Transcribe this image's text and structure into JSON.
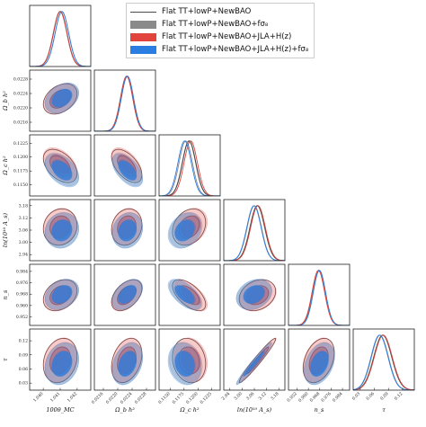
{
  "chart_data": {
    "type": "scatter",
    "title": "",
    "legend": {
      "placement": "top-center",
      "entries": [
        {
          "label": "Flat TT+lowP+NewBAO",
          "style": "line",
          "color": "#4b4b4b"
        },
        {
          "label": "Flat TT+lowP+NewBAO+fσ₈",
          "style": "filled",
          "color": "#8a8a8a"
        },
        {
          "label": "Flat TT+lowP+NewBAO+JLA+H(z)",
          "style": "filled",
          "color": "#e0443c"
        },
        {
          "label": "Flat TT+lowP+NewBAO+JLA+H(z)+fσ₈",
          "style": "filled",
          "color": "#2a7de1"
        }
      ]
    },
    "parameters": [
      {
        "label": "100θ_MC",
        "range": [
          1.0392,
          1.0428
        ],
        "ticks": [
          "1.040",
          "1.041",
          "1.042"
        ],
        "tick_values": [
          1.04,
          1.041,
          1.042
        ]
      },
      {
        "label": "Ω_b h²",
        "range": [
          0.02135,
          0.02305
        ],
        "ticks": [
          "0.0216",
          "0.0220",
          "0.0224",
          "0.0228"
        ],
        "tick_values": [
          0.0216,
          0.022,
          0.0224,
          0.0228
        ]
      },
      {
        "label": "Ω_c h²",
        "range": [
          0.113,
          0.124
        ],
        "ticks": [
          "0.1150",
          "0.1175",
          "0.1200",
          "0.1225"
        ],
        "tick_values": [
          0.115,
          0.1175,
          0.12,
          0.1225
        ]
      },
      {
        "label": "ln(10¹⁰ A_s)",
        "range": [
          2.91,
          3.21
        ],
        "ticks": [
          "2.94",
          "3.00",
          "3.06",
          "3.12",
          "3.18"
        ],
        "tick_values": [
          2.94,
          3.0,
          3.06,
          3.12,
          3.18
        ]
      },
      {
        "label": "n_s",
        "range": [
          0.946,
          0.989
        ],
        "ticks": [
          "0.952",
          "0.960",
          "0.968",
          "0.976",
          "0.984"
        ],
        "tick_values": [
          0.952,
          0.96,
          0.968,
          0.976,
          0.984
        ]
      },
      {
        "label": "τ",
        "range": [
          0.015,
          0.145
        ],
        "ticks": [
          "0.03",
          "0.06",
          "0.09",
          "0.12"
        ],
        "tick_values": [
          0.03,
          0.06,
          0.09,
          0.12
        ]
      }
    ],
    "series": [
      {
        "name": "Flat TT+lowP+NewBAO",
        "color": "#4b4b4b",
        "mean": [
          1.041,
          0.02225,
          0.1184,
          3.075,
          0.9673,
          0.078
        ],
        "sigma": [
          0.0004,
          0.00017,
          0.0012,
          0.036,
          0.0044,
          0.019
        ]
      },
      {
        "name": "Flat TT+lowP+NewBAO+fσ₈",
        "color": "#8a8a8a",
        "mean": [
          1.0411,
          0.02227,
          0.1178,
          3.06,
          0.9675,
          0.072
        ],
        "sigma": [
          0.0004,
          0.00017,
          0.0012,
          0.035,
          0.0043,
          0.018
        ]
      },
      {
        "name": "Flat TT+lowP+NewBAO+JLA+H(z)",
        "color": "#e0443c",
        "mean": [
          1.041,
          0.02225,
          0.1187,
          3.078,
          0.967,
          0.079
        ],
        "sigma": [
          0.0004,
          0.00017,
          0.0012,
          0.036,
          0.0044,
          0.019
        ]
      },
      {
        "name": "Flat TT+lowP+NewBAO+JLA+H(z)+fσ₈",
        "color": "#2a7de1",
        "mean": [
          1.0411,
          0.02227,
          0.1176,
          3.058,
          0.9678,
          0.071
        ],
        "sigma": [
          0.0004,
          0.00017,
          0.0012,
          0.035,
          0.0043,
          0.018
        ]
      }
    ],
    "correlations": {
      "1,0": 0.35,
      "2,0": -0.45,
      "2,1": -0.55,
      "3,0": 0.1,
      "3,1": 0.15,
      "3,2": 0.25,
      "4,0": 0.3,
      "4,1": 0.45,
      "4,2": -0.6,
      "4,3": 0.25,
      "5,0": 0.2,
      "5,1": 0.3,
      "5,2": -0.15,
      "5,3": 0.97,
      "5,4": 0.35
    },
    "contour_levels": [
      "68%",
      "95%"
    ]
  }
}
